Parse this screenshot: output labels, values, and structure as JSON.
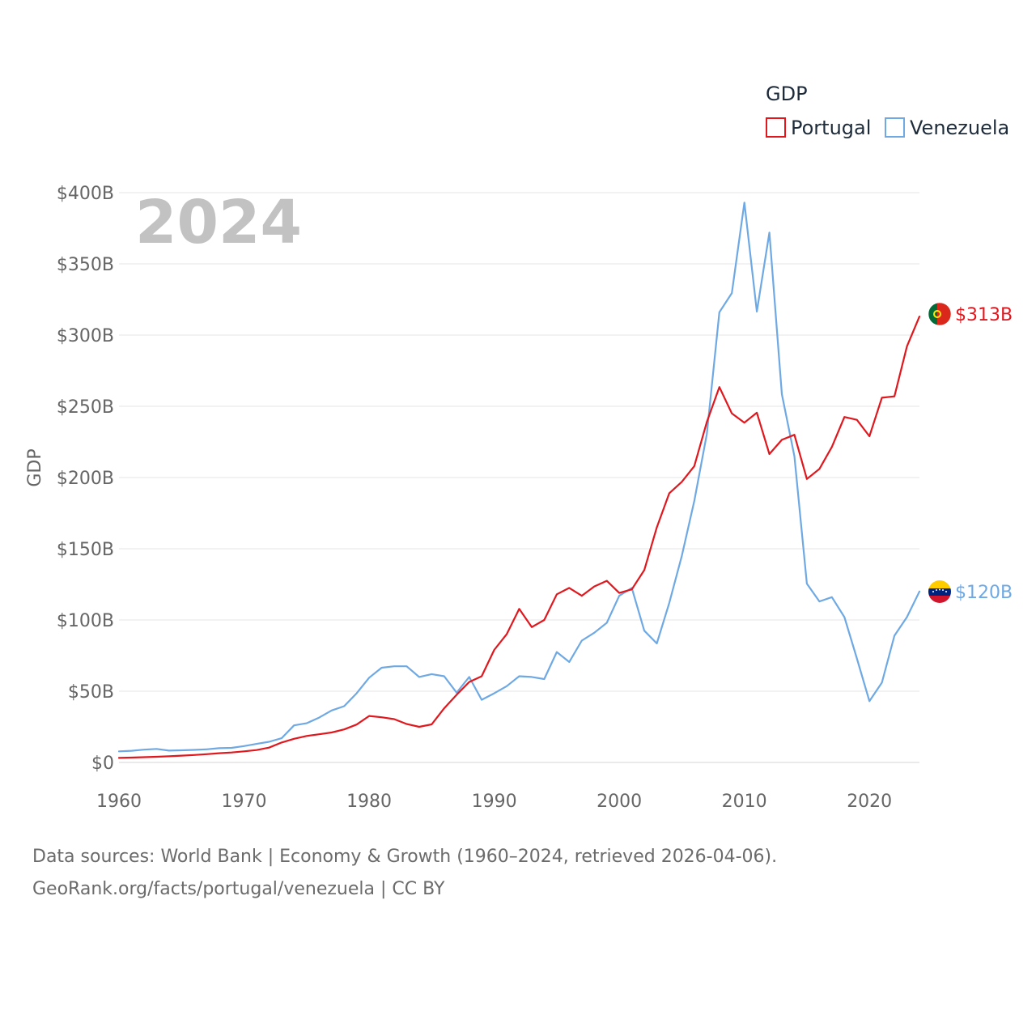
{
  "chart_data": {
    "type": "line",
    "legend_title": "GDP",
    "ylabel": "GDP",
    "year_label": "2024",
    "x": [
      1960,
      1961,
      1962,
      1963,
      1964,
      1965,
      1966,
      1967,
      1968,
      1969,
      1970,
      1971,
      1972,
      1973,
      1974,
      1975,
      1976,
      1977,
      1978,
      1979,
      1980,
      1981,
      1982,
      1983,
      1984,
      1985,
      1986,
      1987,
      1988,
      1989,
      1990,
      1991,
      1992,
      1993,
      1994,
      1995,
      1996,
      1997,
      1998,
      1999,
      2000,
      2001,
      2002,
      2003,
      2004,
      2005,
      2006,
      2007,
      2008,
      2009,
      2010,
      2011,
      2012,
      2013,
      2014,
      2015,
      2016,
      2017,
      2018,
      2019,
      2020,
      2021,
      2022,
      2023,
      2024
    ],
    "xlim": [
      1960,
      2024
    ],
    "ylim": [
      0,
      400
    ],
    "x_ticks": [
      1960,
      1970,
      1980,
      1990,
      2000,
      2010,
      2020
    ],
    "y_ticks": [
      0,
      50,
      100,
      150,
      200,
      250,
      300,
      350,
      400
    ],
    "y_tick_labels": [
      "$0",
      "$50B",
      "$100B",
      "$150B",
      "$200B",
      "$250B",
      "$300B",
      "$350B",
      "$400B"
    ],
    "units": "USD billions",
    "series": [
      {
        "name": "Portugal",
        "color": "#e0181e",
        "end_label": "$313B",
        "flag": "portugal-flag",
        "values": [
          3.2,
          3.4,
          3.7,
          4.0,
          4.3,
          4.8,
          5.2,
          5.8,
          6.5,
          7.0,
          7.8,
          8.7,
          10.4,
          14.0,
          16.6,
          18.6,
          19.8,
          21.0,
          23.2,
          26.6,
          32.6,
          31.7,
          30.4,
          27.0,
          25.0,
          26.7,
          38.0,
          47.5,
          56.5,
          60.5,
          79.0,
          90.0,
          107.8,
          95.0,
          100.0,
          118.0,
          122.5,
          117.0,
          123.5,
          127.5,
          119.0,
          121.5,
          135.0,
          165.0,
          189.0,
          197.0,
          208.0,
          239.0,
          263.5,
          245.0,
          238.5,
          245.5,
          216.5,
          226.5,
          230.0,
          199.0,
          206.0,
          221.5,
          242.5,
          240.5,
          229.0,
          256.0,
          257.0,
          292.0,
          313.0
        ]
      },
      {
        "name": "Venezuela",
        "color": "#6fa9e4",
        "end_label": "$120B",
        "flag": "venezuela-flag",
        "values": [
          7.8,
          8.2,
          9.0,
          9.5,
          8.3,
          8.5,
          8.8,
          9.2,
          10.0,
          10.2,
          11.5,
          13.0,
          14.5,
          17.0,
          26.0,
          27.5,
          31.5,
          36.5,
          39.5,
          48.5,
          59.5,
          66.5,
          67.5,
          67.5,
          60.0,
          62.0,
          60.5,
          49.0,
          60.0,
          44.0,
          48.5,
          53.5,
          60.5,
          60.0,
          58.5,
          77.5,
          70.5,
          85.5,
          91.0,
          98.0,
          117.0,
          122.5,
          92.5,
          83.5,
          112.0,
          145.0,
          183.5,
          230.5,
          316.0,
          329.5,
          393.0,
          316.5,
          372.0,
          258.5,
          215.0,
          125.5,
          113.0,
          116.0,
          102.0,
          73.0,
          43.0,
          56.0,
          89.0,
          102.0,
          120.0
        ]
      }
    ]
  },
  "footer": {
    "line1": "Data sources: World Bank | Economy & Growth (1960–2024, retrieved 2026-04-06).",
    "line2": "GeoRank.org/facts/portugal/venezuela | CC BY"
  }
}
